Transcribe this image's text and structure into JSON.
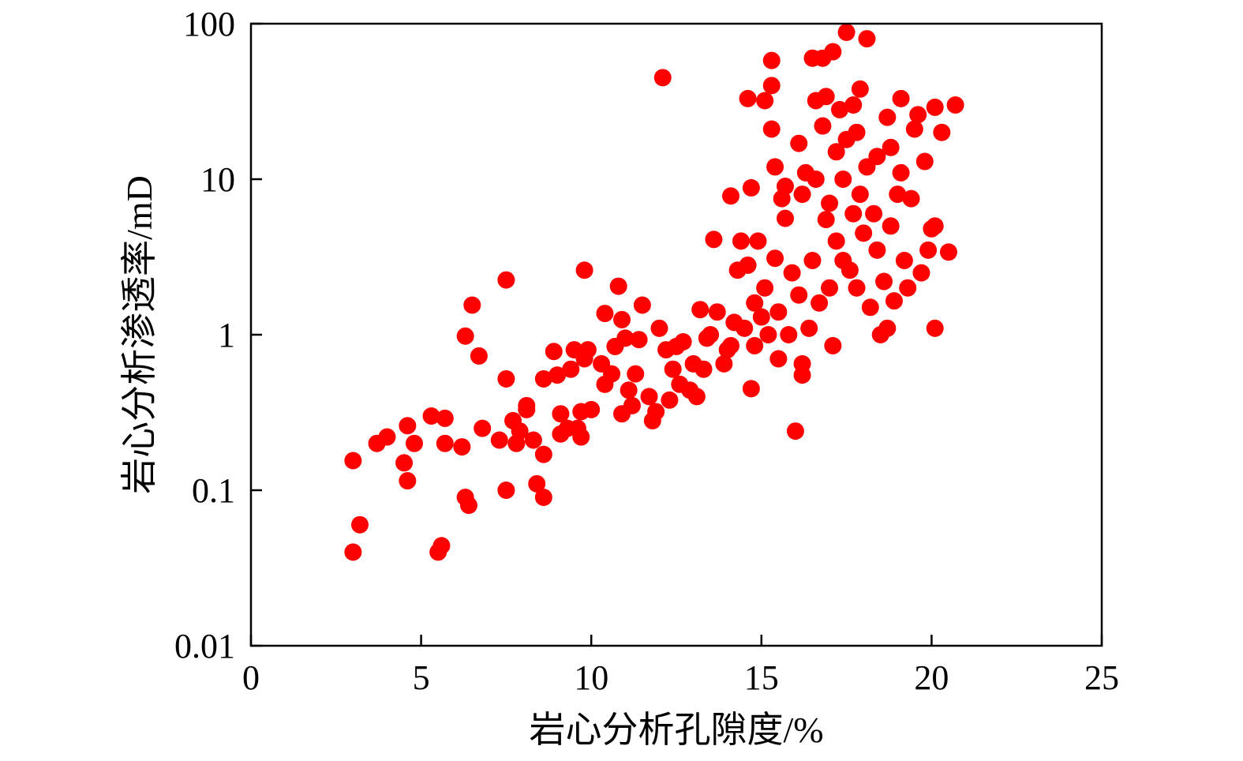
{
  "chart_data": {
    "type": "scatter",
    "title": "",
    "xlabel": "岩心分析孔隙度/%",
    "ylabel": "岩心分析渗透率/mD",
    "xlim": [
      0,
      25
    ],
    "ylim": [
      0.01,
      100
    ],
    "yscale": "log",
    "grid": false,
    "legend": "none",
    "marker_color": "#ff0000",
    "x_ticks": [
      {
        "value": 0,
        "label": "0"
      },
      {
        "value": 5,
        "label": "5"
      },
      {
        "value": 10,
        "label": "10"
      },
      {
        "value": 15,
        "label": "15"
      },
      {
        "value": 20,
        "label": "20"
      },
      {
        "value": 25,
        "label": "25"
      }
    ],
    "y_ticks": [
      {
        "value": 0.01,
        "label": "0.01"
      },
      {
        "value": 0.1,
        "label": "0.1"
      },
      {
        "value": 1,
        "label": "1"
      },
      {
        "value": 10,
        "label": "10"
      },
      {
        "value": 100,
        "label": "100"
      }
    ],
    "points": [
      [
        3.0,
        0.155
      ],
      [
        3.0,
        0.04
      ],
      [
        3.2,
        0.06
      ],
      [
        3.7,
        0.2
      ],
      [
        4.0,
        0.22
      ],
      [
        4.5,
        0.15
      ],
      [
        4.6,
        0.26
      ],
      [
        4.6,
        0.115
      ],
      [
        4.8,
        0.2
      ],
      [
        5.3,
        0.3
      ],
      [
        5.5,
        0.04
      ],
      [
        5.6,
        0.044
      ],
      [
        5.7,
        0.29
      ],
      [
        5.7,
        0.2
      ],
      [
        6.2,
        0.19
      ],
      [
        6.3,
        0.98
      ],
      [
        6.3,
        0.09
      ],
      [
        6.4,
        0.08
      ],
      [
        6.5,
        1.55
      ],
      [
        6.7,
        0.73
      ],
      [
        6.8,
        0.25
      ],
      [
        7.3,
        0.21
      ],
      [
        7.5,
        0.52
      ],
      [
        7.5,
        0.1
      ],
      [
        7.5,
        2.25
      ],
      [
        7.7,
        0.28
      ],
      [
        7.8,
        0.2
      ],
      [
        7.9,
        0.24
      ],
      [
        8.1,
        0.33
      ],
      [
        8.1,
        0.35
      ],
      [
        8.3,
        0.21
      ],
      [
        8.4,
        0.11
      ],
      [
        8.6,
        0.09
      ],
      [
        8.6,
        0.52
      ],
      [
        8.6,
        0.17
      ],
      [
        8.9,
        0.78
      ],
      [
        9.0,
        0.55
      ],
      [
        9.1,
        0.23
      ],
      [
        9.1,
        0.31
      ],
      [
        9.3,
        0.25
      ],
      [
        9.4,
        0.6
      ],
      [
        9.5,
        0.8
      ],
      [
        9.6,
        0.25
      ],
      [
        9.7,
        0.22
      ],
      [
        9.7,
        0.32
      ],
      [
        9.8,
        0.7
      ],
      [
        9.8,
        2.6
      ],
      [
        9.9,
        0.8
      ],
      [
        10.0,
        0.33
      ],
      [
        10.3,
        0.65
      ],
      [
        10.4,
        0.48
      ],
      [
        10.4,
        1.37
      ],
      [
        10.6,
        0.56
      ],
      [
        10.7,
        0.84
      ],
      [
        10.8,
        2.05
      ],
      [
        10.9,
        0.31
      ],
      [
        10.9,
        1.25
      ],
      [
        11.0,
        0.95
      ],
      [
        11.1,
        0.44
      ],
      [
        11.2,
        0.35
      ],
      [
        11.3,
        0.56
      ],
      [
        11.4,
        0.93
      ],
      [
        11.5,
        1.55
      ],
      [
        11.7,
        0.4
      ],
      [
        11.8,
        0.28
      ],
      [
        11.9,
        0.32
      ],
      [
        12.0,
        1.1
      ],
      [
        12.1,
        45.0
      ],
      [
        12.2,
        0.8
      ],
      [
        12.3,
        0.38
      ],
      [
        12.4,
        0.6
      ],
      [
        12.5,
        0.84
      ],
      [
        12.6,
        0.48
      ],
      [
        12.7,
        0.9
      ],
      [
        12.9,
        0.44
      ],
      [
        13.0,
        0.65
      ],
      [
        13.1,
        0.4
      ],
      [
        13.2,
        1.45
      ],
      [
        13.3,
        0.6
      ],
      [
        13.4,
        0.95
      ],
      [
        13.5,
        1.0
      ],
      [
        13.6,
        4.1
      ],
      [
        13.7,
        1.4
      ],
      [
        13.9,
        0.65
      ],
      [
        14.0,
        0.8
      ],
      [
        14.1,
        7.8
      ],
      [
        14.1,
        0.85
      ],
      [
        14.2,
        1.2
      ],
      [
        14.3,
        2.6
      ],
      [
        14.4,
        4.0
      ],
      [
        14.5,
        1.1
      ],
      [
        14.6,
        33.0
      ],
      [
        14.6,
        2.8
      ],
      [
        14.7,
        0.45
      ],
      [
        14.7,
        8.8
      ],
      [
        14.8,
        1.6
      ],
      [
        14.8,
        0.85
      ],
      [
        14.9,
        4.0
      ],
      [
        15.0,
        1.3
      ],
      [
        15.1,
        2.0
      ],
      [
        15.1,
        32.0
      ],
      [
        15.2,
        1.0
      ],
      [
        15.3,
        21.0
      ],
      [
        15.3,
        40.0
      ],
      [
        15.3,
        58.0
      ],
      [
        15.4,
        3.1
      ],
      [
        15.4,
        12.0
      ],
      [
        15.5,
        1.4
      ],
      [
        15.5,
        0.7
      ],
      [
        15.6,
        7.5
      ],
      [
        15.7,
        5.6
      ],
      [
        15.7,
        9.0
      ],
      [
        15.8,
        1.0
      ],
      [
        15.9,
        2.5
      ],
      [
        16.0,
        0.24
      ],
      [
        16.1,
        1.8
      ],
      [
        16.1,
        17.0
      ],
      [
        16.2,
        0.65
      ],
      [
        16.2,
        0.55
      ],
      [
        16.2,
        8.0
      ],
      [
        16.3,
        11.0
      ],
      [
        16.4,
        1.1
      ],
      [
        16.5,
        60.0
      ],
      [
        16.5,
        3.0
      ],
      [
        16.6,
        32.0
      ],
      [
        16.6,
        10.0
      ],
      [
        16.7,
        1.6
      ],
      [
        16.8,
        60.0
      ],
      [
        16.8,
        22.0
      ],
      [
        16.9,
        34.0
      ],
      [
        16.9,
        5.5
      ],
      [
        17.0,
        2.0
      ],
      [
        17.0,
        7.0
      ],
      [
        17.1,
        66.0
      ],
      [
        17.1,
        0.85
      ],
      [
        17.2,
        15.0
      ],
      [
        17.2,
        4.0
      ],
      [
        17.3,
        28.0
      ],
      [
        17.4,
        10.0
      ],
      [
        17.4,
        3.0
      ],
      [
        17.5,
        88.0
      ],
      [
        17.5,
        18.0
      ],
      [
        17.6,
        2.6
      ],
      [
        17.7,
        30.0
      ],
      [
        17.7,
        6.0
      ],
      [
        17.8,
        2.0
      ],
      [
        17.8,
        20.0
      ],
      [
        17.9,
        38.0
      ],
      [
        17.9,
        8.0
      ],
      [
        18.0,
        4.5
      ],
      [
        18.1,
        80.0
      ],
      [
        18.1,
        12.0
      ],
      [
        18.2,
        1.5
      ],
      [
        18.3,
        6.0
      ],
      [
        18.4,
        3.5
      ],
      [
        18.4,
        14.0
      ],
      [
        18.5,
        1.0
      ],
      [
        18.6,
        2.2
      ],
      [
        18.7,
        25.0
      ],
      [
        18.7,
        1.1
      ],
      [
        18.8,
        16.0
      ],
      [
        18.8,
        5.0
      ],
      [
        18.9,
        1.65
      ],
      [
        19.0,
        8.0
      ],
      [
        19.1,
        11.0
      ],
      [
        19.1,
        33.0
      ],
      [
        19.2,
        3.0
      ],
      [
        19.3,
        2.0
      ],
      [
        19.4,
        7.5
      ],
      [
        19.5,
        21.0
      ],
      [
        19.6,
        26.0
      ],
      [
        19.7,
        2.5
      ],
      [
        19.8,
        13.0
      ],
      [
        19.9,
        3.5
      ],
      [
        20.0,
        4.8
      ],
      [
        20.1,
        1.1
      ],
      [
        20.1,
        29.0
      ],
      [
        20.1,
        5.0
      ],
      [
        20.3,
        20.0
      ],
      [
        20.5,
        3.4
      ],
      [
        20.7,
        30.0
      ]
    ]
  }
}
